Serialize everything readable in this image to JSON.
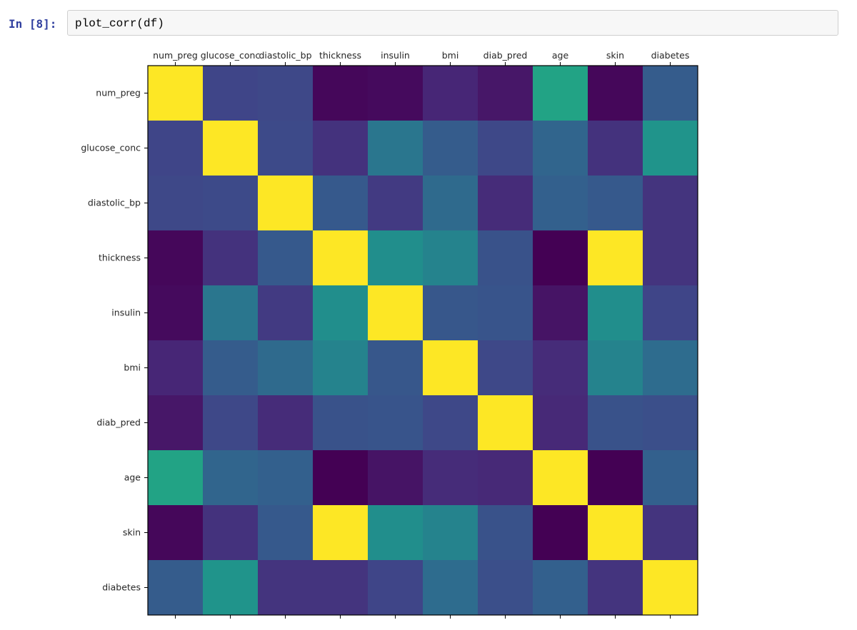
{
  "cell": {
    "prompt": "In [8]:",
    "code": "plot_corr(df)"
  },
  "chart_data": {
    "type": "heatmap",
    "title": "",
    "xlabel": "",
    "ylabel": "",
    "x_tick_position": "top",
    "grid": false,
    "legend": "none",
    "colormap": "viridis",
    "vmin": -0.1,
    "vmax": 1.0,
    "x_categories": [
      "num_preg",
      "glucose_conc",
      "diastolic_bp",
      "thickness",
      "insulin",
      "bmi",
      "diab_pred",
      "age",
      "skin",
      "diabetes"
    ],
    "y_categories": [
      "num_preg",
      "glucose_conc",
      "diastolic_bp",
      "thickness",
      "insulin",
      "bmi",
      "diab_pred",
      "age",
      "skin",
      "diabetes"
    ],
    "values": [
      [
        1.0,
        0.13,
        0.14,
        -0.08,
        -0.07,
        0.02,
        -0.03,
        0.54,
        -0.08,
        0.22
      ],
      [
        0.13,
        1.0,
        0.15,
        0.06,
        0.33,
        0.22,
        0.14,
        0.26,
        0.06,
        0.47
      ],
      [
        0.14,
        0.15,
        1.0,
        0.21,
        0.09,
        0.28,
        0.04,
        0.24,
        0.21,
        0.07
      ],
      [
        -0.08,
        0.06,
        0.21,
        1.0,
        0.44,
        0.39,
        0.18,
        -0.11,
        1.0,
        0.07
      ],
      [
        -0.07,
        0.33,
        0.09,
        0.44,
        1.0,
        0.2,
        0.19,
        -0.04,
        0.44,
        0.13
      ],
      [
        0.02,
        0.22,
        0.28,
        0.39,
        0.2,
        1.0,
        0.14,
        0.04,
        0.39,
        0.29
      ],
      [
        -0.03,
        0.14,
        0.04,
        0.18,
        0.19,
        0.14,
        1.0,
        0.03,
        0.18,
        0.17
      ],
      [
        0.54,
        0.26,
        0.24,
        -0.11,
        -0.04,
        0.04,
        0.03,
        1.0,
        -0.11,
        0.24
      ],
      [
        -0.08,
        0.06,
        0.21,
        1.0,
        0.44,
        0.39,
        0.18,
        -0.11,
        1.0,
        0.07
      ],
      [
        0.22,
        0.47,
        0.07,
        0.07,
        0.13,
        0.29,
        0.17,
        0.24,
        0.07,
        1.0
      ]
    ]
  }
}
